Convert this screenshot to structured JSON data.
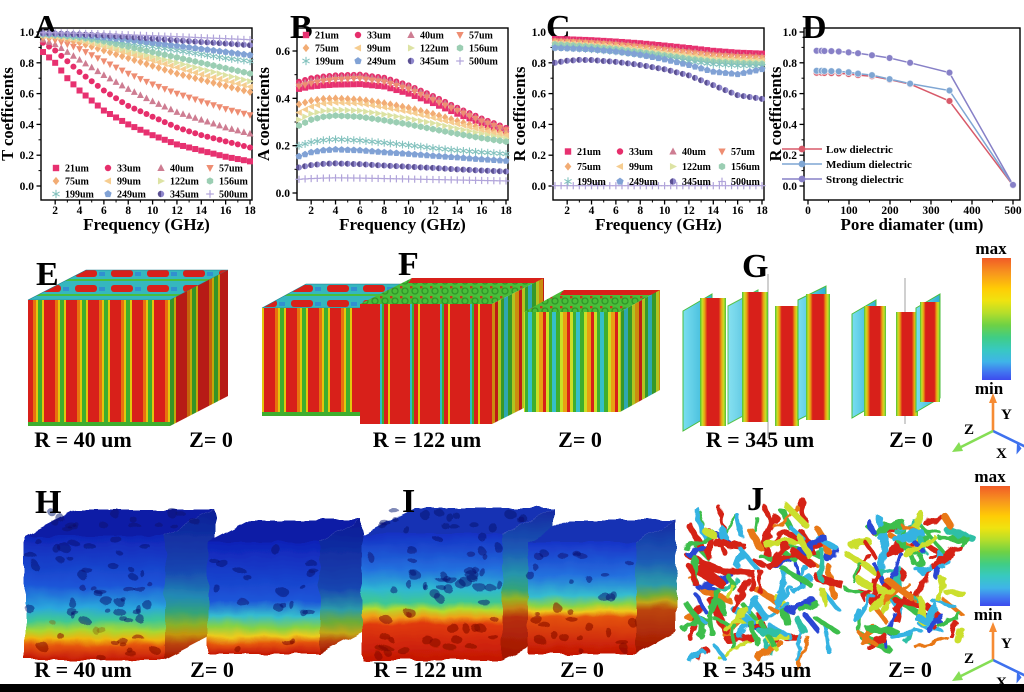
{
  "chart_data": [
    {
      "type": "scatter",
      "letter": "A",
      "xlabel": "Frequency (GHz)",
      "ylabel": "T coefficients",
      "xlim": [
        1,
        18.2
      ],
      "ylim": [
        -0.1,
        1.05
      ],
      "xticks": [
        2,
        4,
        6,
        8,
        10,
        12,
        14,
        16,
        18
      ],
      "yticks": [
        0.0,
        0.2,
        0.4,
        0.6,
        0.8,
        1.0
      ],
      "legend_position": "bottom-grid",
      "x_anchors": [
        1,
        2,
        3,
        4,
        6,
        8,
        10,
        12,
        14,
        16,
        18
      ],
      "series": [
        {
          "name": "21um",
          "marker": "square",
          "color": "#E73170",
          "values": [
            0.87,
            0.8,
            0.7,
            0.62,
            0.49,
            0.4,
            0.33,
            0.27,
            0.23,
            0.19,
            0.16
          ]
        },
        {
          "name": "33um",
          "marker": "circle",
          "color": "#E62E6B",
          "values": [
            0.93,
            0.88,
            0.81,
            0.74,
            0.62,
            0.52,
            0.45,
            0.38,
            0.33,
            0.29,
            0.25
          ]
        },
        {
          "name": "40um",
          "marker": "triangle-up",
          "color": "#CE7D92",
          "values": [
            0.95,
            0.92,
            0.87,
            0.82,
            0.72,
            0.63,
            0.55,
            0.48,
            0.43,
            0.38,
            0.34
          ]
        },
        {
          "name": "57um",
          "marker": "triangle-down",
          "color": "#EE8D72",
          "values": [
            0.96,
            0.945,
            0.92,
            0.89,
            0.81,
            0.73,
            0.66,
            0.6,
            0.55,
            0.5,
            0.46
          ]
        },
        {
          "name": "75um",
          "marker": "diamond",
          "color": "#F2AC74",
          "values": [
            0.97,
            0.965,
            0.95,
            0.93,
            0.88,
            0.83,
            0.78,
            0.73,
            0.69,
            0.65,
            0.61
          ]
        },
        {
          "name": "99um",
          "marker": "triangle-left",
          "color": "#F6CD90",
          "values": [
            0.975,
            0.97,
            0.96,
            0.945,
            0.905,
            0.86,
            0.815,
            0.77,
            0.725,
            0.685,
            0.645
          ]
        },
        {
          "name": "122um",
          "marker": "triangle-right",
          "color": "#DDE3A4",
          "values": [
            0.98,
            0.975,
            0.965,
            0.955,
            0.92,
            0.88,
            0.84,
            0.8,
            0.76,
            0.72,
            0.68
          ]
        },
        {
          "name": "156um",
          "marker": "hexagon",
          "color": "#9BCEB3",
          "values": [
            0.985,
            0.98,
            0.972,
            0.965,
            0.94,
            0.905,
            0.87,
            0.835,
            0.8,
            0.765,
            0.73
          ]
        },
        {
          "name": "199um",
          "marker": "star",
          "color": "#83C2BE",
          "values": [
            0.985,
            0.982,
            0.978,
            0.972,
            0.955,
            0.932,
            0.905,
            0.88,
            0.855,
            0.83,
            0.81
          ]
        },
        {
          "name": "249um",
          "marker": "pentagon",
          "color": "#81A2D5",
          "values": [
            0.99,
            0.988,
            0.985,
            0.98,
            0.965,
            0.95,
            0.93,
            0.91,
            0.89,
            0.87,
            0.85
          ]
        },
        {
          "name": "345um",
          "marker": "circle-shaded",
          "color": "#8E86CB",
          "values": [
            0.992,
            0.99,
            0.988,
            0.985,
            0.978,
            0.968,
            0.957,
            0.946,
            0.935,
            0.925,
            0.915
          ]
        },
        {
          "name": "500um",
          "marker": "plus",
          "color": "#B1A4DA",
          "values": [
            0.995,
            0.995,
            0.994,
            0.992,
            0.988,
            0.982,
            0.976,
            0.97,
            0.963,
            0.957,
            0.95
          ]
        }
      ]
    },
    {
      "type": "scatter",
      "letter": "B",
      "xlabel": "Frequency (GHz)",
      "ylabel": "A coefficients",
      "xlim": [
        1,
        18.2
      ],
      "ylim": [
        0,
        0.7
      ],
      "xticks": [
        2,
        4,
        6,
        8,
        10,
        12,
        14,
        16,
        18
      ],
      "yticks": [
        0.0,
        0.2,
        0.4,
        0.6
      ],
      "legend_position": "top-grid",
      "x_anchors": [
        1,
        2,
        3,
        4,
        6,
        8,
        10,
        12,
        14,
        16,
        18
      ],
      "series": [
        {
          "name": "21um",
          "marker": "square",
          "color": "#E73170",
          "values": [
            0.44,
            0.45,
            0.455,
            0.458,
            0.46,
            0.45,
            0.42,
            0.38,
            0.335,
            0.295,
            0.26
          ]
        },
        {
          "name": "33um",
          "marker": "circle",
          "color": "#E62E6B",
          "values": [
            0.47,
            0.485,
            0.492,
            0.497,
            0.5,
            0.487,
            0.455,
            0.41,
            0.36,
            0.315,
            0.275
          ]
        },
        {
          "name": "40um",
          "marker": "triangle-up",
          "color": "#CE7D92",
          "values": [
            0.46,
            0.475,
            0.485,
            0.49,
            0.495,
            0.48,
            0.45,
            0.405,
            0.355,
            0.31,
            0.27
          ]
        },
        {
          "name": "57um",
          "marker": "triangle-down",
          "color": "#EE8D72",
          "values": [
            0.45,
            0.462,
            0.472,
            0.478,
            0.483,
            0.468,
            0.438,
            0.393,
            0.347,
            0.303,
            0.266
          ]
        },
        {
          "name": "75um",
          "marker": "diamond",
          "color": "#F2AC74",
          "values": [
            0.375,
            0.39,
            0.398,
            0.4,
            0.395,
            0.38,
            0.36,
            0.335,
            0.305,
            0.275,
            0.25
          ]
        },
        {
          "name": "99um",
          "marker": "triangle-left",
          "color": "#F6CD90",
          "values": [
            0.34,
            0.365,
            0.378,
            0.382,
            0.378,
            0.362,
            0.343,
            0.318,
            0.292,
            0.266,
            0.243
          ]
        },
        {
          "name": "122um",
          "marker": "triangle-right",
          "color": "#DDE3A4",
          "values": [
            0.31,
            0.335,
            0.347,
            0.352,
            0.348,
            0.332,
            0.315,
            0.295,
            0.272,
            0.25,
            0.23
          ]
        },
        {
          "name": "156um",
          "marker": "hexagon",
          "color": "#9BCEB3",
          "values": [
            0.285,
            0.31,
            0.322,
            0.327,
            0.322,
            0.307,
            0.29,
            0.27,
            0.25,
            0.232,
            0.217
          ]
        },
        {
          "name": "199um",
          "marker": "star",
          "color": "#83C2BE",
          "values": [
            0.2,
            0.215,
            0.223,
            0.227,
            0.222,
            0.212,
            0.202,
            0.19,
            0.18,
            0.172,
            0.165
          ]
        },
        {
          "name": "249um",
          "marker": "pentagon",
          "color": "#81A2D5",
          "values": [
            0.155,
            0.172,
            0.18,
            0.184,
            0.18,
            0.172,
            0.165,
            0.157,
            0.15,
            0.142,
            0.136
          ]
        },
        {
          "name": "345um",
          "marker": "circle-shaded",
          "color": "#8E86CB",
          "values": [
            0.108,
            0.118,
            0.123,
            0.125,
            0.122,
            0.116,
            0.111,
            0.106,
            0.1,
            0.095,
            0.091
          ]
        },
        {
          "name": "500um",
          "marker": "plus",
          "color": "#B1A4DA",
          "values": [
            0.058,
            0.061,
            0.063,
            0.064,
            0.063,
            0.061,
            0.059,
            0.057,
            0.055,
            0.053,
            0.051
          ]
        }
      ]
    },
    {
      "type": "scatter",
      "letter": "C",
      "xlabel": "Frequency (GHz)",
      "ylabel": "R coefficients",
      "xlim": [
        1,
        18.2
      ],
      "ylim": [
        -0.1,
        1.05
      ],
      "xticks": [
        2,
        4,
        6,
        8,
        10,
        12,
        14,
        16,
        18
      ],
      "yticks": [
        0.0,
        0.2,
        0.4,
        0.6,
        0.8,
        1.0
      ],
      "legend_position": "mid-grid",
      "x_anchors": [
        1,
        2,
        3,
        4,
        6,
        8,
        10,
        12,
        14,
        16,
        18
      ],
      "series": [
        {
          "name": "21um",
          "marker": "square",
          "color": "#E73170",
          "values": [
            0.955,
            0.953,
            0.95,
            0.947,
            0.938,
            0.927,
            0.912,
            0.896,
            0.878,
            0.866,
            0.86
          ]
        },
        {
          "name": "33um",
          "marker": "circle",
          "color": "#E62E6B",
          "values": [
            0.95,
            0.948,
            0.945,
            0.941,
            0.931,
            0.919,
            0.903,
            0.886,
            0.868,
            0.857,
            0.851
          ]
        },
        {
          "name": "40um",
          "marker": "triangle-up",
          "color": "#CE7D92",
          "values": [
            0.945,
            0.943,
            0.939,
            0.935,
            0.925,
            0.911,
            0.894,
            0.877,
            0.859,
            0.848,
            0.842
          ]
        },
        {
          "name": "57um",
          "marker": "triangle-down",
          "color": "#EE8D72",
          "values": [
            0.94,
            0.937,
            0.933,
            0.929,
            0.918,
            0.903,
            0.885,
            0.867,
            0.849,
            0.839,
            0.833
          ]
        },
        {
          "name": "75um",
          "marker": "diamond",
          "color": "#F2AC74",
          "values": [
            0.935,
            0.932,
            0.928,
            0.923,
            0.911,
            0.895,
            0.876,
            0.857,
            0.84,
            0.83,
            0.824
          ]
        },
        {
          "name": "99um",
          "marker": "triangle-left",
          "color": "#F6CD90",
          "values": [
            0.93,
            0.927,
            0.922,
            0.917,
            0.904,
            0.887,
            0.867,
            0.847,
            0.83,
            0.82,
            0.815
          ]
        },
        {
          "name": "122um",
          "marker": "triangle-right",
          "color": "#DDE3A4",
          "values": [
            0.925,
            0.921,
            0.916,
            0.911,
            0.897,
            0.879,
            0.858,
            0.837,
            0.82,
            0.81,
            0.806
          ]
        },
        {
          "name": "156um",
          "marker": "hexagon",
          "color": "#9BCEB3",
          "values": [
            0.92,
            0.915,
            0.91,
            0.904,
            0.889,
            0.87,
            0.848,
            0.826,
            0.808,
            0.798,
            0.793
          ]
        },
        {
          "name": "199um",
          "marker": "star",
          "color": "#83C2BE",
          "values": [
            0.9,
            0.897,
            0.893,
            0.888,
            0.874,
            0.855,
            0.832,
            0.81,
            0.791,
            0.782,
            0.778
          ]
        },
        {
          "name": "249um",
          "marker": "pentagon",
          "color": "#81A2D5",
          "values": [
            0.897,
            0.894,
            0.891,
            0.887,
            0.873,
            0.852,
            0.822,
            0.785,
            0.742,
            0.726,
            0.758
          ]
        },
        {
          "name": "345um",
          "marker": "circle-shaded",
          "color": "#8E86CB",
          "values": [
            0.8,
            0.813,
            0.819,
            0.818,
            0.806,
            0.786,
            0.758,
            0.718,
            0.655,
            0.59,
            0.566
          ]
        },
        {
          "name": "500um",
          "marker": "plus",
          "color": "#B1A4DA",
          "values": [
            0.002,
            0.002,
            0.002,
            0.002,
            0.002,
            0.002,
            0.002,
            0.002,
            0.002,
            0.002,
            0.002
          ]
        }
      ]
    },
    {
      "type": "line",
      "letter": "D",
      "xlabel": "Pore diamater (um)",
      "ylabel": "R coefficients",
      "xlim": [
        -10,
        520
      ],
      "ylim": [
        -0.1,
        1.05
      ],
      "xticks": [
        0,
        100,
        200,
        300,
        400,
        500
      ],
      "yticks": [
        0.0,
        0.2,
        0.4,
        0.6,
        0.8,
        1.0
      ],
      "legend_position": "list",
      "x": [
        21,
        33,
        40,
        57,
        75,
        99,
        122,
        156,
        199,
        249,
        345,
        500
      ],
      "series": [
        {
          "name": "Low dielectric",
          "marker": "circle",
          "color": "#D85A6A",
          "values": [
            0.735,
            0.735,
            0.734,
            0.733,
            0.731,
            0.727,
            0.72,
            0.713,
            0.69,
            0.662,
            0.552,
            0.004
          ]
        },
        {
          "name": "Medium dielectric",
          "marker": "circle",
          "color": "#7FA6D3",
          "values": [
            0.748,
            0.748,
            0.747,
            0.746,
            0.744,
            0.739,
            0.73,
            0.72,
            0.694,
            0.665,
            0.62,
            0.005
          ]
        },
        {
          "name": "Strong  dielectric",
          "marker": "circle",
          "color": "#8780C7",
          "values": [
            0.878,
            0.878,
            0.877,
            0.876,
            0.873,
            0.868,
            0.862,
            0.849,
            0.831,
            0.8,
            0.736,
            0.007
          ]
        }
      ]
    }
  ],
  "structures": {
    "panels": [
      {
        "letter": "E",
        "label_left": "R = 40 um",
        "label_right": "Z= 0"
      },
      {
        "letter": "F",
        "label_left": "R = 122 um",
        "label_right": "Z= 0"
      },
      {
        "letter": "G",
        "label_left": "R = 345 um",
        "label_right": "Z= 0"
      },
      {
        "letter": "H",
        "label_left": "R = 40 um",
        "label_right": "Z= 0"
      },
      {
        "letter": "I",
        "label_left": "R = 122 um",
        "label_right": "Z= 0"
      },
      {
        "letter": "J",
        "label_left": "R = 345 um",
        "label_right": "Z= 0"
      }
    ]
  },
  "colorbar": {
    "max_label": "max",
    "min_label": "min"
  },
  "triad": {
    "x_label": "X",
    "y_label": "Y",
    "z_label": "Z"
  }
}
